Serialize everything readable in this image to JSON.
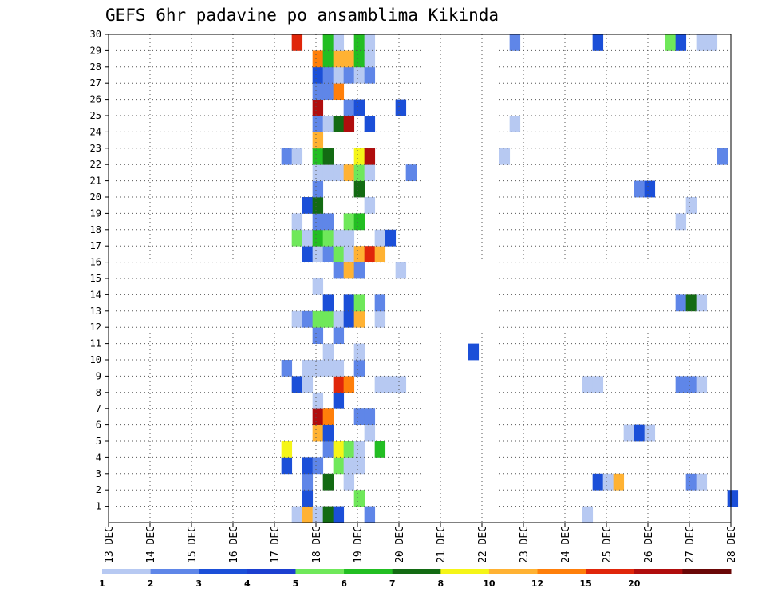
{
  "chart_data": {
    "type": "heatmap",
    "title": "GEFS 6hr padavine po ansamblima Kikinda",
    "x_tick_labels": [
      "13 DEC",
      "14 DEC",
      "15 DEC",
      "16 DEC",
      "17 DEC",
      "18 DEC",
      "19 DEC",
      "20 DEC",
      "21 DEC",
      "22 DEC",
      "23 DEC",
      "24 DEC",
      "25 DEC",
      "26 DEC",
      "27 DEC",
      "28 DEC"
    ],
    "y_tick_labels": [
      "1",
      "2",
      "3",
      "4",
      "5",
      "6",
      "7",
      "8",
      "9",
      "10",
      "11",
      "12",
      "13",
      "14",
      "15",
      "16",
      "17",
      "18",
      "19",
      "20",
      "21",
      "22",
      "23",
      "24",
      "25",
      "26",
      "27",
      "28",
      "29",
      "30"
    ],
    "x_range_hours_from_13dec00": [
      0,
      360
    ],
    "y_range": [
      0,
      30
    ],
    "grid": true,
    "legend": {
      "position": "bottom",
      "tick_labels": [
        "1",
        "2",
        "3",
        "4",
        "5",
        "6",
        "7",
        "8",
        "10",
        "12",
        "15",
        "20"
      ],
      "colors": [
        "#b7c9f2",
        "#5f86e8",
        "#1b4fd8",
        "#1c3fd0",
        "#6fe85a",
        "#22be22",
        "#136b13",
        "#f5f518",
        "#ffb233",
        "#ff7f0a",
        "#e0260a",
        "#b00d0d",
        "#6a0707"
      ]
    },
    "cells": [
      [
        0,
        106,
        "#b7c9f2"
      ],
      [
        0,
        112,
        "#ffb233"
      ],
      [
        0,
        118,
        "#b7c9f2"
      ],
      [
        0,
        124,
        "#136b13"
      ],
      [
        0,
        130,
        "#1b4fd8"
      ],
      [
        0,
        148,
        "#5f86e8"
      ],
      [
        0,
        274,
        "#b7c9f2"
      ],
      [
        1,
        112,
        "#1b4fd8"
      ],
      [
        1,
        142,
        "#6fe85a"
      ],
      [
        1,
        358,
        "#1b4fd8"
      ],
      [
        2,
        112,
        "#5f86e8"
      ],
      [
        2,
        124,
        "#136b13"
      ],
      [
        2,
        136,
        "#b7c9f2"
      ],
      [
        2,
        280,
        "#1b4fd8"
      ],
      [
        2,
        286,
        "#b7c9f2"
      ],
      [
        2,
        292,
        "#ffb233"
      ],
      [
        2,
        334,
        "#5f86e8"
      ],
      [
        2,
        340,
        "#b7c9f2"
      ],
      [
        3,
        100,
        "#1b4fd8"
      ],
      [
        3,
        112,
        "#1b4fd8"
      ],
      [
        3,
        118,
        "#5f86e8"
      ],
      [
        3,
        130,
        "#6fe85a"
      ],
      [
        3,
        136,
        "#b7c9f2"
      ],
      [
        3,
        142,
        "#b7c9f2"
      ],
      [
        4,
        100,
        "#f5f518"
      ],
      [
        4,
        124,
        "#5f86e8"
      ],
      [
        4,
        130,
        "#f5f518"
      ],
      [
        4,
        136,
        "#6fe85a"
      ],
      [
        4,
        142,
        "#b7c9f2"
      ],
      [
        4,
        154,
        "#22be22"
      ],
      [
        5,
        118,
        "#ffb233"
      ],
      [
        5,
        124,
        "#1b4fd8"
      ],
      [
        5,
        148,
        "#b7c9f2"
      ],
      [
        5,
        298,
        "#b7c9f2"
      ],
      [
        5,
        304,
        "#1b4fd8"
      ],
      [
        5,
        310,
        "#b7c9f2"
      ],
      [
        6,
        118,
        "#b00d0d"
      ],
      [
        6,
        124,
        "#ff7f0a"
      ],
      [
        6,
        142,
        "#5f86e8"
      ],
      [
        6,
        148,
        "#5f86e8"
      ],
      [
        7,
        118,
        "#b7c9f2"
      ],
      [
        7,
        130,
        "#1b4fd8"
      ],
      [
        8,
        106,
        "#1b4fd8"
      ],
      [
        8,
        112,
        "#b7c9f2"
      ],
      [
        8,
        130,
        "#e0260a"
      ],
      [
        8,
        136,
        "#ff7f0a"
      ],
      [
        8,
        154,
        "#b7c9f2"
      ],
      [
        8,
        160,
        "#b7c9f2"
      ],
      [
        8,
        166,
        "#b7c9f2"
      ],
      [
        8,
        274,
        "#b7c9f2"
      ],
      [
        8,
        280,
        "#b7c9f2"
      ],
      [
        8,
        328,
        "#5f86e8"
      ],
      [
        8,
        334,
        "#5f86e8"
      ],
      [
        8,
        340,
        "#b7c9f2"
      ],
      [
        9,
        100,
        "#5f86e8"
      ],
      [
        9,
        112,
        "#b7c9f2"
      ],
      [
        9,
        118,
        "#b7c9f2"
      ],
      [
        9,
        124,
        "#b7c9f2"
      ],
      [
        9,
        130,
        "#b7c9f2"
      ],
      [
        9,
        142,
        "#5f86e8"
      ],
      [
        10,
        124,
        "#b7c9f2"
      ],
      [
        10,
        142,
        "#b7c9f2"
      ],
      [
        10,
        208,
        "#1b4fd8"
      ],
      [
        11,
        118,
        "#5f86e8"
      ],
      [
        11,
        130,
        "#5f86e8"
      ],
      [
        12,
        106,
        "#b7c9f2"
      ],
      [
        12,
        112,
        "#5f86e8"
      ],
      [
        12,
        118,
        "#6fe85a"
      ],
      [
        12,
        124,
        "#6fe85a"
      ],
      [
        12,
        130,
        "#b7c9f2"
      ],
      [
        12,
        136,
        "#1b4fd8"
      ],
      [
        12,
        142,
        "#ffb233"
      ],
      [
        12,
        154,
        "#b7c9f2"
      ],
      [
        13,
        124,
        "#1b4fd8"
      ],
      [
        13,
        136,
        "#1b4fd8"
      ],
      [
        13,
        142,
        "#6fe85a"
      ],
      [
        13,
        154,
        "#5f86e8"
      ],
      [
        13,
        328,
        "#5f86e8"
      ],
      [
        13,
        334,
        "#136b13"
      ],
      [
        13,
        340,
        "#b7c9f2"
      ],
      [
        14,
        118,
        "#b7c9f2"
      ],
      [
        15,
        130,
        "#5f86e8"
      ],
      [
        15,
        136,
        "#ffb233"
      ],
      [
        15,
        142,
        "#5f86e8"
      ],
      [
        15,
        166,
        "#b7c9f2"
      ],
      [
        16,
        112,
        "#1b4fd8"
      ],
      [
        16,
        118,
        "#b7c9f2"
      ],
      [
        16,
        124,
        "#5f86e8"
      ],
      [
        16,
        130,
        "#6fe85a"
      ],
      [
        16,
        136,
        "#b7c9f2"
      ],
      [
        16,
        142,
        "#ffb233"
      ],
      [
        16,
        148,
        "#e0260a"
      ],
      [
        16,
        154,
        "#ffb233"
      ],
      [
        17,
        106,
        "#6fe85a"
      ],
      [
        17,
        112,
        "#b7c9f2"
      ],
      [
        17,
        118,
        "#22be22"
      ],
      [
        17,
        124,
        "#6fe85a"
      ],
      [
        17,
        130,
        "#b7c9f2"
      ],
      [
        17,
        136,
        "#b7c9f2"
      ],
      [
        17,
        154,
        "#b7c9f2"
      ],
      [
        17,
        160,
        "#1b4fd8"
      ],
      [
        18,
        106,
        "#b7c9f2"
      ],
      [
        18,
        118,
        "#5f86e8"
      ],
      [
        18,
        124,
        "#5f86e8"
      ],
      [
        18,
        136,
        "#6fe85a"
      ],
      [
        18,
        142,
        "#22be22"
      ],
      [
        18,
        328,
        "#b7c9f2"
      ],
      [
        19,
        112,
        "#1b4fd8"
      ],
      [
        19,
        118,
        "#136b13"
      ],
      [
        19,
        148,
        "#b7c9f2"
      ],
      [
        19,
        334,
        "#b7c9f2"
      ],
      [
        20,
        118,
        "#5f86e8"
      ],
      [
        20,
        142,
        "#136b13"
      ],
      [
        20,
        304,
        "#5f86e8"
      ],
      [
        20,
        310,
        "#1b4fd8"
      ],
      [
        21,
        118,
        "#b7c9f2"
      ],
      [
        21,
        124,
        "#b7c9f2"
      ],
      [
        21,
        130,
        "#b7c9f2"
      ],
      [
        21,
        136,
        "#ffb233"
      ],
      [
        21,
        142,
        "#6fe85a"
      ],
      [
        21,
        148,
        "#b7c9f2"
      ],
      [
        21,
        172,
        "#5f86e8"
      ],
      [
        22,
        100,
        "#5f86e8"
      ],
      [
        22,
        106,
        "#b7c9f2"
      ],
      [
        22,
        118,
        "#22be22"
      ],
      [
        22,
        124,
        "#136b13"
      ],
      [
        22,
        142,
        "#f5f518"
      ],
      [
        22,
        148,
        "#b00d0d"
      ],
      [
        22,
        226,
        "#b7c9f2"
      ],
      [
        22,
        352,
        "#5f86e8"
      ],
      [
        23,
        118,
        "#ffb233"
      ],
      [
        24,
        118,
        "#5f86e8"
      ],
      [
        24,
        124,
        "#b7c9f2"
      ],
      [
        24,
        130,
        "#136b13"
      ],
      [
        24,
        136,
        "#b00d0d"
      ],
      [
        24,
        148,
        "#1b4fd8"
      ],
      [
        24,
        232,
        "#b7c9f2"
      ],
      [
        25,
        118,
        "#b00d0d"
      ],
      [
        25,
        136,
        "#5f86e8"
      ],
      [
        25,
        142,
        "#1b4fd8"
      ],
      [
        25,
        166,
        "#1b4fd8"
      ],
      [
        26,
        118,
        "#5f86e8"
      ],
      [
        26,
        124,
        "#5f86e8"
      ],
      [
        26,
        130,
        "#ff7f0a"
      ],
      [
        27,
        118,
        "#1b4fd8"
      ],
      [
        27,
        124,
        "#5f86e8"
      ],
      [
        27,
        130,
        "#b7c9f2"
      ],
      [
        27,
        136,
        "#5f86e8"
      ],
      [
        27,
        142,
        "#b7c9f2"
      ],
      [
        27,
        148,
        "#5f86e8"
      ],
      [
        28,
        118,
        "#ff7f0a"
      ],
      [
        28,
        124,
        "#22be22"
      ],
      [
        28,
        130,
        "#ffb233"
      ],
      [
        28,
        136,
        "#ffb233"
      ],
      [
        28,
        142,
        "#22be22"
      ],
      [
        28,
        148,
        "#b7c9f2"
      ],
      [
        29,
        106,
        "#e0260a"
      ],
      [
        29,
        124,
        "#22be22"
      ],
      [
        29,
        130,
        "#b7c9f2"
      ],
      [
        29,
        142,
        "#22be22"
      ],
      [
        29,
        148,
        "#b7c9f2"
      ],
      [
        29,
        232,
        "#5f86e8"
      ],
      [
        29,
        280,
        "#1b4fd8"
      ],
      [
        29,
        322,
        "#6fe85a"
      ],
      [
        29,
        328,
        "#1b4fd8"
      ],
      [
        29,
        340,
        "#b7c9f2"
      ],
      [
        29,
        346,
        "#b7c9f2"
      ]
    ]
  }
}
